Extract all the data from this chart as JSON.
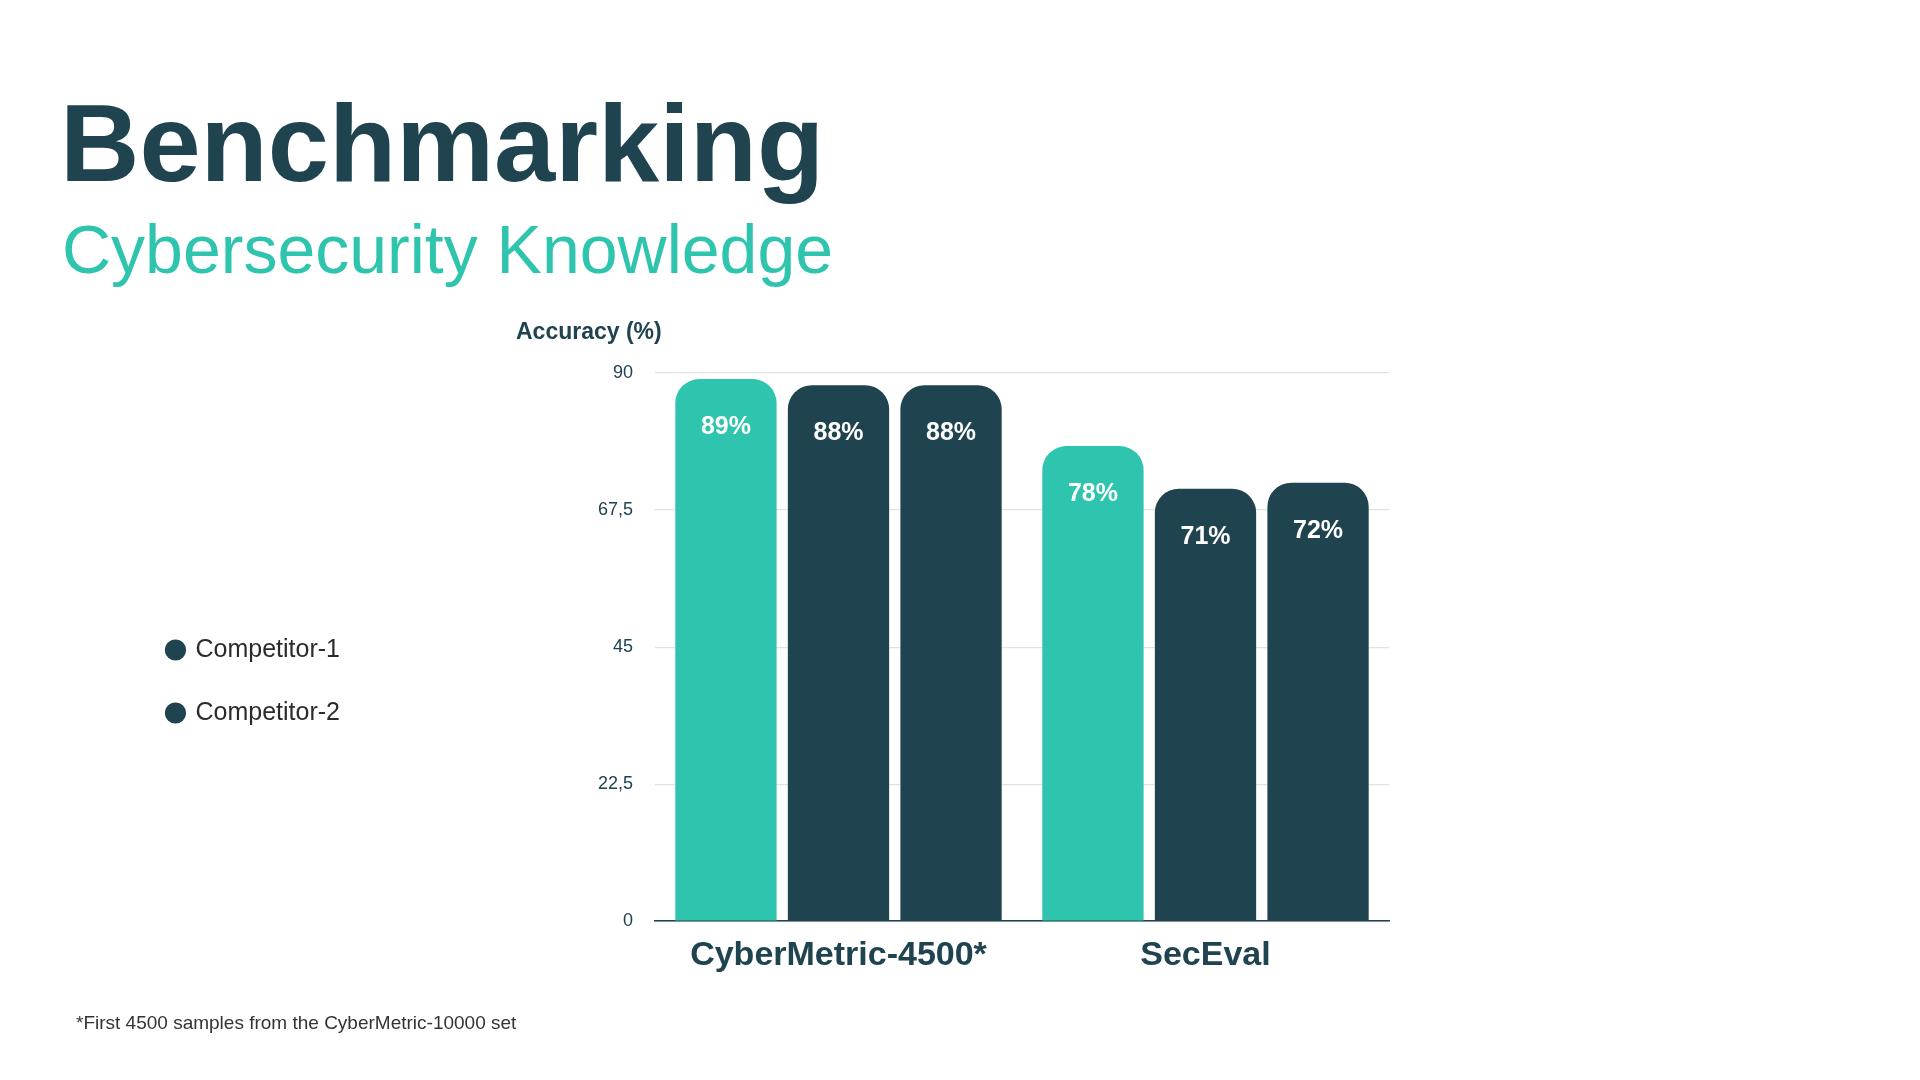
{
  "chart_data": {
    "type": "bar",
    "title": "Benchmarking",
    "subtitle": "Cybersecurity Knowledge",
    "ylabel": "Accuracy (%)",
    "categories": [
      "CyberMetric-4500*",
      "SecEval"
    ],
    "series": [
      {
        "color": "#2ec4ad",
        "values": [
          89,
          78
        ],
        "value_labels": [
          "89%",
          "78%"
        ]
      },
      {
        "name": "Competitor-1",
        "color": "#204350",
        "values": [
          88,
          71
        ],
        "value_labels": [
          "88%",
          "71%"
        ]
      },
      {
        "name": "Competitor-2",
        "color": "#204350",
        "values": [
          88,
          72
        ],
        "value_labels": [
          "88%",
          "72%"
        ]
      }
    ],
    "ylim": [
      0,
      90
    ],
    "yticks": [
      0,
      {
        "value": 22.5,
        "label": "22,5"
      },
      45,
      {
        "value": 67.5,
        "label": "67,5"
      },
      90
    ],
    "grid": "y",
    "legend": "left",
    "annotations": [
      "*First 4500 samples from the CyberMetric-10000 set"
    ]
  }
}
